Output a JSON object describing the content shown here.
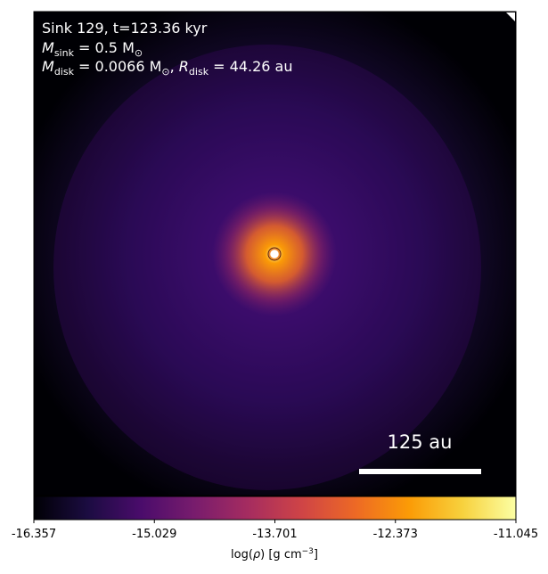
{
  "chart_data": {
    "type": "heatmap",
    "title_lines": {
      "line1": "Sink 129, t=123.36 kyr",
      "msink_symbol": "M",
      "msink_sub": "sink",
      "msink_value": " = 0.5 M",
      "sun_symbol": "⊙",
      "mdisk_symbol": "M",
      "mdisk_sub": "disk",
      "mdisk_value": " = 0.0066 M",
      "rdisk_symbol": "R",
      "rdisk_sub": "disk",
      "rdisk_value": " = 44.26 au"
    },
    "sink": {
      "name": "Sink 129",
      "time_kyr": 123.36,
      "mass_msun": 0.5,
      "disk_mass_msun": 0.0066,
      "disk_radius_au": 44.26
    },
    "scale_bar": {
      "label": "125 au",
      "length_au": 125
    },
    "colorbar": {
      "label": "log(ρ) [g cm⁻³]",
      "min": -16.357,
      "max": -11.045,
      "ticks": [
        "-16.357",
        "-15.029",
        "-13.701",
        "-12.373",
        "-11.045"
      ],
      "colormap": "inferno-like",
      "stops": [
        "#000004",
        "#1b0c41",
        "#4a0c6b",
        "#781c6d",
        "#a52c60",
        "#cf4446",
        "#ed6925",
        "#fb9b06",
        "#f7d13d",
        "#fcffa4"
      ]
    },
    "density_field": {
      "peak_log_rho": -11.045,
      "background_log_rho": -16.357,
      "note_center_marker": "sink particle marked by white circle with orange outline"
    }
  }
}
